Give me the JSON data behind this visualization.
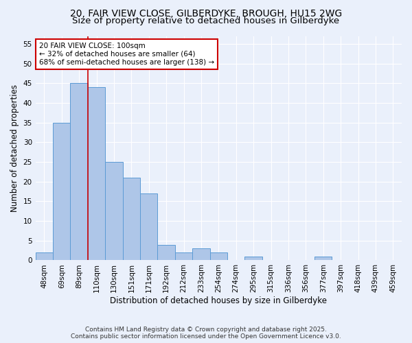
{
  "title_line1": "20, FAIR VIEW CLOSE, GILBERDYKE, BROUGH, HU15 2WG",
  "title_line2": "Size of property relative to detached houses in Gilberdyke",
  "xlabel": "Distribution of detached houses by size in Gilberdyke",
  "ylabel": "Number of detached properties",
  "categories": [
    "48sqm",
    "69sqm",
    "89sqm",
    "110sqm",
    "130sqm",
    "151sqm",
    "171sqm",
    "192sqm",
    "212sqm",
    "233sqm",
    "254sqm",
    "274sqm",
    "295sqm",
    "315sqm",
    "336sqm",
    "356sqm",
    "377sqm",
    "397sqm",
    "418sqm",
    "439sqm",
    "459sqm"
  ],
  "values": [
    2,
    35,
    45,
    44,
    25,
    21,
    17,
    4,
    2,
    3,
    2,
    0,
    1,
    0,
    0,
    0,
    1,
    0,
    0,
    0,
    0
  ],
  "bar_color": "#aec6e8",
  "bar_edge_color": "#5b9bd5",
  "vline_color": "#cc0000",
  "vline_x": 2.5,
  "ylim": [
    0,
    57
  ],
  "yticks": [
    0,
    5,
    10,
    15,
    20,
    25,
    30,
    35,
    40,
    45,
    50,
    55
  ],
  "annotation_text": "20 FAIR VIEW CLOSE: 100sqm\n← 32% of detached houses are smaller (64)\n68% of semi-detached houses are larger (138) →",
  "annotation_box_color": "#ffffff",
  "annotation_box_edge": "#cc0000",
  "background_color": "#eaf0fb",
  "grid_color": "#ffffff",
  "footer_line1": "Contains HM Land Registry data © Crown copyright and database right 2025.",
  "footer_line2": "Contains public sector information licensed under the Open Government Licence v3.0.",
  "title_fontsize": 10,
  "subtitle_fontsize": 9.5,
  "label_fontsize": 8.5,
  "tick_fontsize": 7.5,
  "annotation_fontsize": 7.5,
  "footer_fontsize": 6.5
}
